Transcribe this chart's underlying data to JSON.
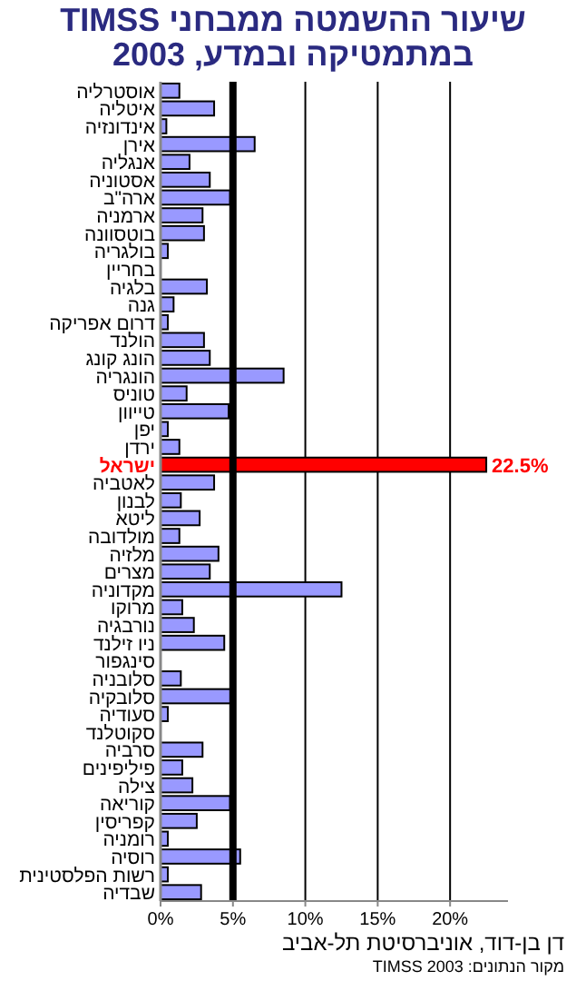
{
  "chart_data": {
    "type": "bar",
    "orientation": "horizontal",
    "title": "שיעור ההשמטה ממבחני TIMSS במתמטיקה ובמדע, 2003",
    "categories": [
      "אוסטרליה",
      "איטליה",
      "אינדונזיה",
      "אירן",
      "אנגליה",
      "אסטוניה",
      "ארה\"ב",
      "ארמניה",
      "בוטסוונה",
      "בולגריה",
      "בחריין",
      "בלגיה",
      "גנה",
      "דרום אפריקה",
      "הולנד",
      "הונג קונג",
      "הונגריה",
      "טוניס",
      "טייוון",
      "יפן",
      "ירדן",
      "ישראל",
      "לאטביה",
      "לבנון",
      "ליטא",
      "מולדובה",
      "מלזיה",
      "מצרים",
      "מקדוניה",
      "מרוקו",
      "נורבגיה",
      "ניו זילנד",
      "סינגפור",
      "סלובניה",
      "סלובקיה",
      "סעודיה",
      "סקוטלנד",
      "סרביה",
      "פיליפינים",
      "צילה",
      "קוריאה",
      "קפריסין",
      "רומניה",
      "רוסיה",
      "רשות הפלסטינית",
      "שבדיה"
    ],
    "values": [
      1.3,
      3.7,
      0.4,
      6.5,
      2.0,
      3.4,
      4.8,
      2.9,
      3.0,
      0.5,
      null,
      3.2,
      0.9,
      0.5,
      3.0,
      3.4,
      8.5,
      1.8,
      4.7,
      0.5,
      1.3,
      22.5,
      3.7,
      1.4,
      2.7,
      1.3,
      4.0,
      3.4,
      12.5,
      1.5,
      2.3,
      4.4,
      null,
      1.4,
      5.0,
      0.5,
      null,
      2.9,
      1.5,
      2.2,
      4.8,
      2.5,
      0.5,
      5.5,
      0.5,
      2.8
    ],
    "color": "#9999ff",
    "colors": [
      "#9999ff",
      "#9999ff",
      "#9999ff",
      "#9999ff",
      "#9999ff",
      "#9999ff",
      "#9999ff",
      "#9999ff",
      "#9999ff",
      "#9999ff",
      "#9999ff",
      "#9999ff",
      "#9999ff",
      "#9999ff",
      "#9999ff",
      "#9999ff",
      "#9999ff",
      "#9999ff",
      "#9999ff",
      "#9999ff",
      "#9999ff",
      "#ff0000",
      "#9999ff",
      "#9999ff",
      "#9999ff",
      "#9999ff",
      "#9999ff",
      "#9999ff",
      "#9999ff",
      "#9999ff",
      "#9999ff",
      "#9999ff",
      "#9999ff",
      "#9999ff",
      "#9999ff",
      "#9999ff",
      "#9999ff",
      "#9999ff",
      "#9999ff",
      "#9999ff",
      "#9999ff",
      "#9999ff",
      "#9999ff",
      "#9999ff",
      "#9999ff",
      "#9999ff"
    ],
    "value_labels": [
      null,
      null,
      null,
      null,
      null,
      null,
      null,
      null,
      null,
      null,
      null,
      null,
      null,
      null,
      null,
      null,
      null,
      null,
      null,
      null,
      null,
      "22.5%",
      null,
      null,
      null,
      null,
      null,
      null,
      null,
      null,
      null,
      null,
      null,
      null,
      null,
      null,
      null,
      null,
      null,
      null,
      null,
      null,
      null,
      null,
      null,
      null
    ],
    "xlim": [
      0,
      24
    ],
    "xticks": [
      {
        "value": 0,
        "label": "0%"
      },
      {
        "value": 5,
        "label": "5%"
      },
      {
        "value": 10,
        "label": "10%"
      },
      {
        "value": 15,
        "label": "15%"
      },
      {
        "value": 20,
        "label": "20%"
      }
    ],
    "grid": "x",
    "ref_lines": [
      {
        "axis": "x",
        "value": 5,
        "color": "#000000"
      }
    ],
    "annotations": [
      "דן בן-דוד, אוניברסיטת תל-אביב",
      "מקור הנתונים: TIMSS 2003"
    ]
  }
}
